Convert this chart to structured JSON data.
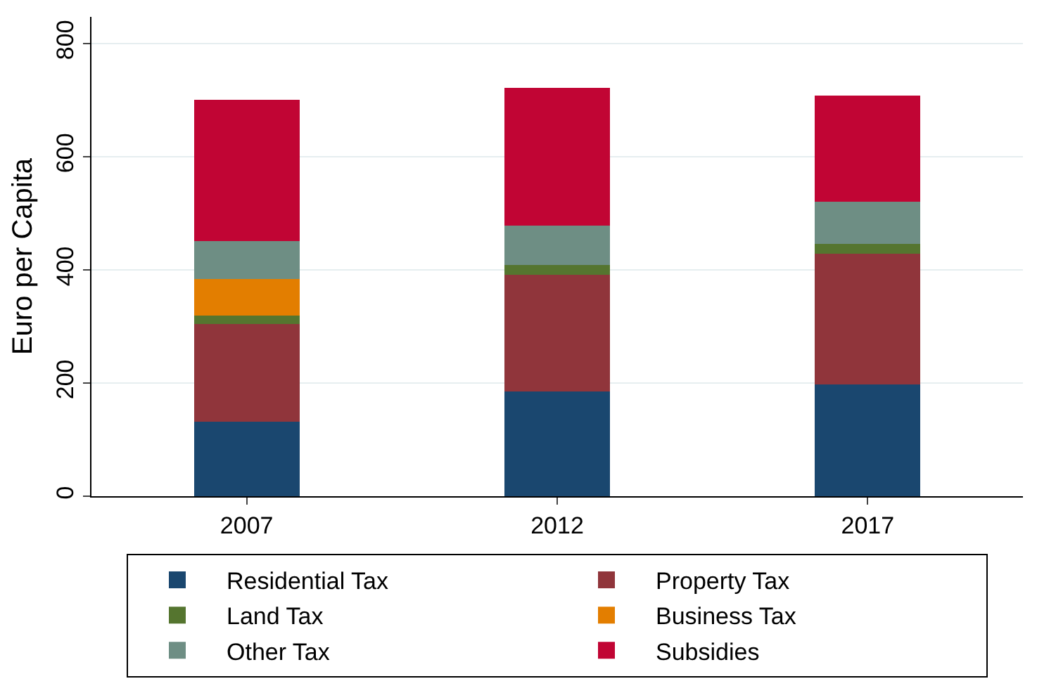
{
  "chart_data": {
    "type": "bar",
    "stacked": true,
    "ylabel": "Euro per Capita",
    "categories": [
      "2007",
      "2012",
      "2017"
    ],
    "series": [
      {
        "name": "Residential Tax",
        "color": "#1a476f",
        "values": [
          132,
          185,
          197
        ]
      },
      {
        "name": "Property Tax",
        "color": "#90353b",
        "values": [
          172,
          206,
          232
        ]
      },
      {
        "name": "Land Tax",
        "color": "#55752f",
        "values": [
          15,
          17,
          17
        ]
      },
      {
        "name": "Business Tax",
        "color": "#e37e00",
        "values": [
          65,
          0,
          0
        ]
      },
      {
        "name": "Other Tax",
        "color": "#6e8e84",
        "values": [
          67,
          70,
          75
        ]
      },
      {
        "name": "Subsidies",
        "color": "#c10534",
        "values": [
          249,
          244,
          187
        ]
      }
    ],
    "ylim": [
      0,
      847
    ],
    "yticks": [
      0,
      200,
      400,
      600,
      800
    ],
    "grid": "y",
    "legend": "bottom"
  }
}
